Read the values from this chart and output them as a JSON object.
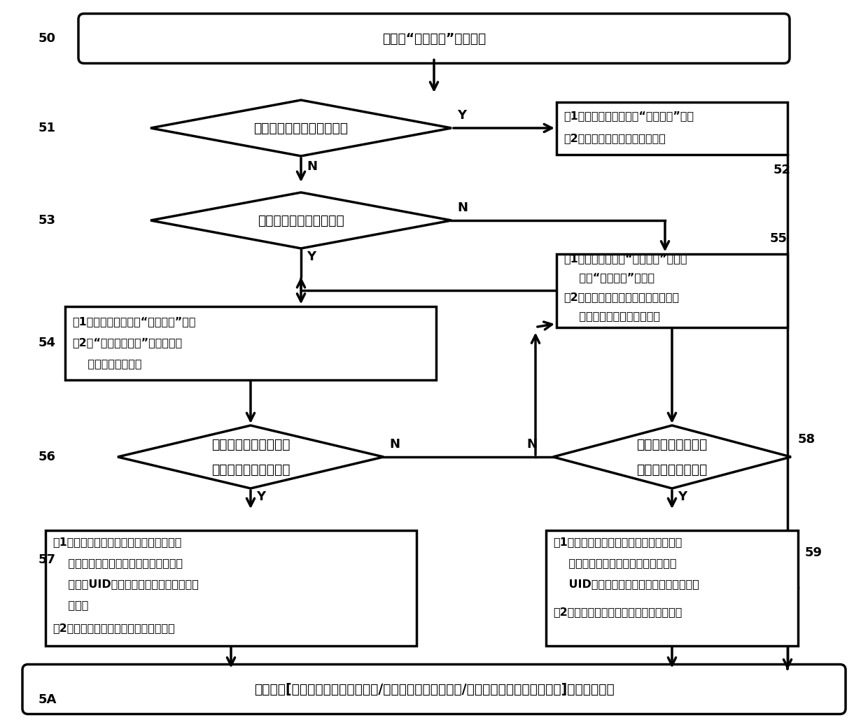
{
  "node_50": "已完成“点火装置”在线充电",
  "node_51": "点火装置是微型无人战机？",
  "node_52_l1": "（1）微型无人战机启动“直接点火”信号",
  "node_52_l2": "（2）火药爆炸推动子弹射向目标",
  "node_53": "点火装置是数码灭火弹？",
  "node_54_l1": "（1）数码灭火弹启动“直接点火”信号",
  "node_54_l2": "（2）“发射或手投掷”数码灭火弹",
  "node_54_l3": "    到目标灭火区域；",
  "node_55_l1": "（1）数码烟花执行“正常点火”指令或",
  "node_55_l2": "    启动“直接点火”信号；",
  "node_55_l3": "（2）数码烟花升空，计时延时值时间",
  "node_55_l4": "    到，点燃烟花释放出焰火；",
  "node_56_l1": "现场所有注册的数码灭",
  "node_56_l2": "火弹完成发射或投掷？",
  "node_57_l1": "（1）检查数码灭火弹点火作业现场，记录",
  "node_57_l2": "    并存储灭火位置信息、时间、实际数码",
  "node_57_l3": "    灭火弹UID等；据需上传信息到监管平台",
  "node_57_l4": "    备案。",
  "node_57_l5": "（2）未点火数码灭火弹进行异常处理。",
  "node_58_l1": "现场所有注册的数码",
  "node_58_l2": "烟花完成点火燃放？",
  "node_59_l1": "（1）检查数码烟花燃放现场，记录并存储",
  "node_59_l2": "    燃放位置信息、时间、实际数码烟花",
  "node_59_l3": "    UID等，据需上传信息到监管平台备案。",
  "node_59_l4": "（2）未能燃放的数码烟花进行异常处理。",
  "node_5A": "点火装置[数码灭火弹（灭火现场）/数码烟花（烟花燃放）/微型无人战机（空中射击）]完成点火作业",
  "lbl_50": "50",
  "lbl_51": "51",
  "lbl_52": "52",
  "lbl_53": "53",
  "lbl_54": "54",
  "lbl_55": "55",
  "lbl_56": "56",
  "lbl_57": "57",
  "lbl_58": "58",
  "lbl_59": "59",
  "lbl_5A": "5A",
  "Y": "Y",
  "N": "N"
}
